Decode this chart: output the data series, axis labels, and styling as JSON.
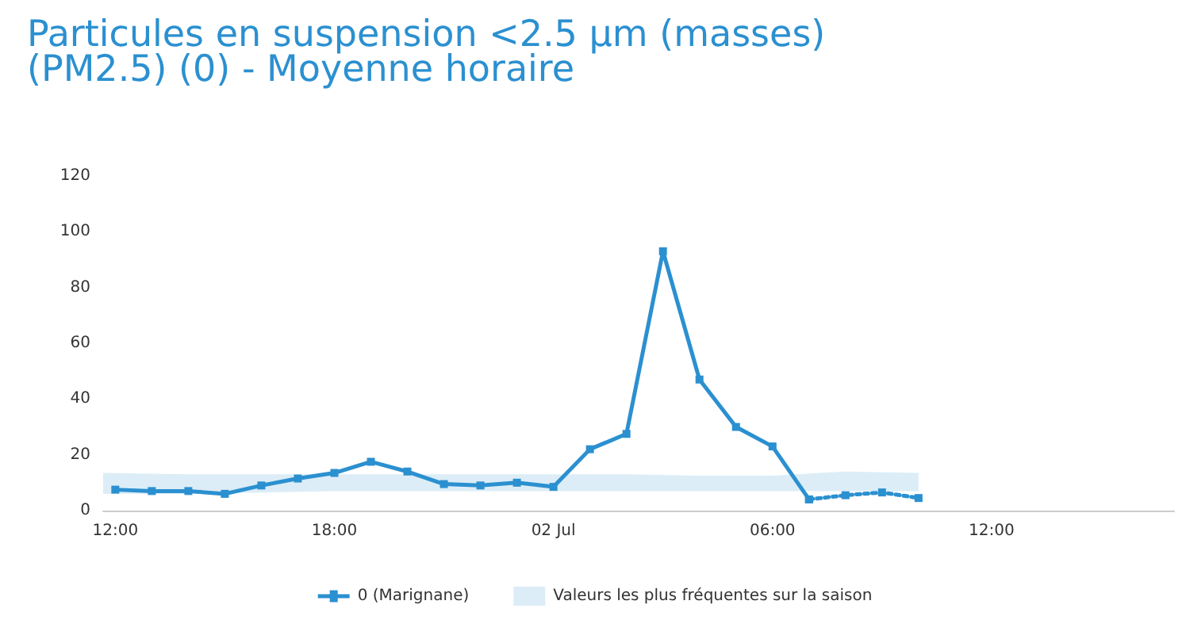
{
  "chart_data": {
    "type": "line",
    "title": "Particules en suspension <2.5 µm (masses)\n(PM2.5) (0) - Moyenne horaire",
    "xlim": [
      "--07-01T11:40",
      "--07-02T17:00"
    ],
    "xticks": [
      {
        "value": "--07-01T12:00",
        "label": "12:00"
      },
      {
        "value": "--07-01T18:00",
        "label": "18:00"
      },
      {
        "value": "--07-02T00:00",
        "label": "02 Jul"
      },
      {
        "value": "--07-02T06:00",
        "label": "06:00"
      },
      {
        "value": "--07-02T12:00",
        "label": "12:00"
      }
    ],
    "ylim": [
      0,
      120
    ],
    "yticks": [
      0,
      20,
      40,
      60,
      80,
      100,
      120
    ],
    "grid": false,
    "legend": "bottom",
    "marker": "square",
    "series": [
      {
        "name": "0 (Marignane)",
        "color": "#2b90d0",
        "line_style": "solid",
        "x": [
          "--07-01T12:00",
          "--07-01T13:00",
          "--07-01T14:00",
          "--07-01T15:00",
          "--07-01T16:00",
          "--07-01T17:00",
          "--07-01T18:00",
          "--07-01T19:00",
          "--07-01T20:00",
          "--07-01T21:00",
          "--07-01T22:00",
          "--07-01T23:00",
          "--07-02T00:00",
          "--07-02T01:00",
          "--07-02T02:00",
          "--07-02T03:00",
          "--07-02T04:00",
          "--07-02T05:00",
          "--07-02T06:00",
          "--07-02T07:00"
        ],
        "values": [
          7.5,
          7,
          7,
          6,
          9,
          11.5,
          13.5,
          17.5,
          14,
          9.5,
          9,
          10,
          8.5,
          22,
          27.5,
          93,
          47,
          30,
          23,
          4
        ]
      },
      {
        "color": "#2b90d0",
        "line_style": "dotted",
        "x": [
          "--07-02T07:00",
          "--07-02T08:00",
          "--07-02T09:00",
          "--07-02T10:00"
        ],
        "values": [
          4,
          5.5,
          6.5,
          4.5
        ]
      },
      {
        "type": "area",
        "name": "Valeurs les plus fréquentes sur la saison",
        "color": "#dcedf7",
        "x": [
          "--07-01T11:40",
          "--07-01T14:00",
          "--07-01T16:00",
          "--07-01T18:00",
          "--07-01T20:00",
          "--07-01T22:00",
          "--07-02T00:00",
          "--07-02T02:00",
          "--07-02T04:00",
          "--07-02T06:00",
          "--07-02T08:00",
          "--07-02T10:00"
        ],
        "values": [
          null,
          null,
          null,
          null,
          null,
          null,
          null,
          null,
          null,
          null,
          null,
          null
        ],
        "lower": [
          6,
          6,
          6.5,
          7,
          7,
          7,
          7,
          7,
          7,
          7,
          7,
          7
        ],
        "upper": [
          13.5,
          13,
          13,
          13,
          13,
          13,
          13,
          13,
          12.5,
          12.5,
          14,
          13.5
        ]
      }
    ]
  }
}
